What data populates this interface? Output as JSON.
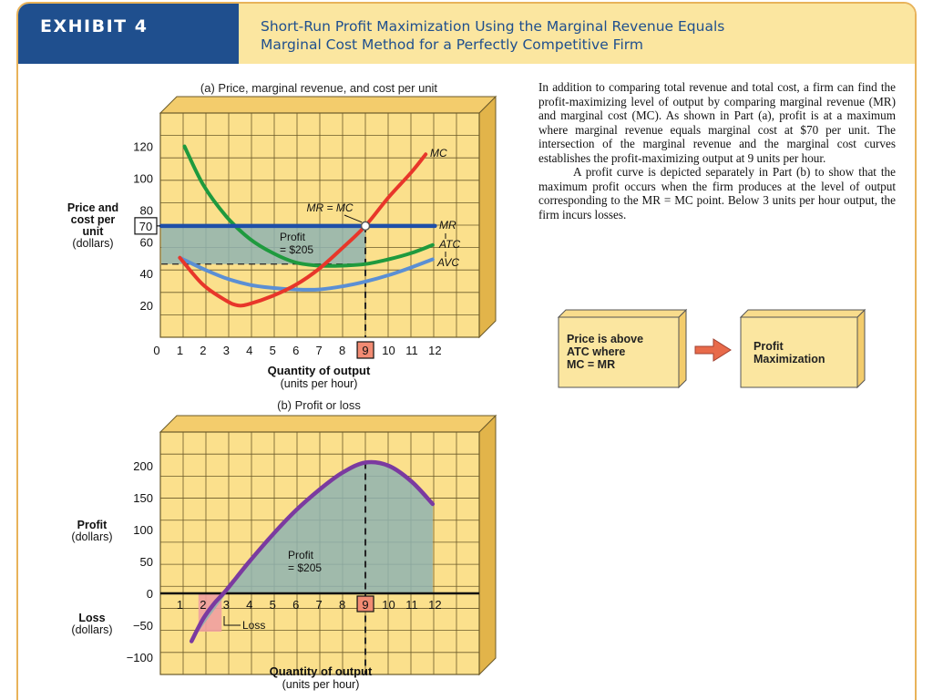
{
  "header": {
    "exhibit_label": "EXHIBIT 4",
    "title_line1": "Short-Run Profit Maximization Using the Marginal Revenue Equals",
    "title_line2": "Marginal Cost Method for a Perfectly Competitive Firm"
  },
  "description": {
    "paragraph1": "In addition to comparing total revenue and total cost, a firm can find the profit-maximizing level of output by comparing marginal revenue (MR) and marginal cost (MC). As shown in Part (a), profit is at a maximum where marginal revenue equals marginal cost at $70 per unit. The intersection of the marginal revenue and the marginal cost curves establishes the profit-maximizing output at 9 units per hour.",
    "paragraph2": "A profit curve is depicted separately in Part (b) to show that the maximum profit occurs when the firm produces at the level of output corresponding to the MR = MC point. Below 3 units per hour output, the firm incurs losses."
  },
  "flow": {
    "box1": [
      "Price is above",
      "ATC where",
      "MC = MR"
    ],
    "box2": [
      "Profit",
      "Maximization"
    ]
  },
  "colors": {
    "header_blue": "#1f4f8e",
    "header_yellow": "#fbe6a0",
    "frame": "#e8b35a",
    "grid_fill": "#fbe08c",
    "grid_line": "#6b5a2a",
    "mc": "#e8362a",
    "mr": "#1f4fa8",
    "atc": "#1f9a3e",
    "avc": "#5b8fd4",
    "profit_curve": "#7b3aa0",
    "profit_area": "#8fb3b0",
    "loss_area": "#f0a0a0",
    "arrow": "#e86a4a"
  },
  "chart_data": [
    {
      "type": "line",
      "title": "(a) Price, marginal revenue, and cost per unit",
      "ylabel": [
        "Price and",
        "cost per",
        "unit",
        "(dollars)"
      ],
      "xlabel": [
        "Quantity of output",
        "(units per hour)"
      ],
      "xlim": [
        0,
        12
      ],
      "ylim": [
        0,
        140
      ],
      "xticks": [
        "0",
        "1",
        "2",
        "3",
        "4",
        "5",
        "6",
        "7",
        "8",
        "9",
        "10",
        "11",
        "12"
      ],
      "yticks": [
        "20",
        "40",
        "60",
        "80",
        "100",
        "120"
      ],
      "highlighted_x": "9",
      "highlighted_y": "70",
      "series": [
        {
          "name": "MC",
          "x": [
            1,
            2,
            3,
            3.5,
            4,
            5,
            6,
            7,
            8,
            9,
            10,
            11,
            11.6
          ],
          "y": [
            50,
            33,
            23,
            20,
            21,
            26,
            33,
            43,
            56,
            70,
            88,
            104,
            115
          ]
        },
        {
          "name": "MR",
          "x": [
            0.2,
            12
          ],
          "y": [
            70,
            70
          ]
        },
        {
          "name": "ATC",
          "x": [
            1.2,
            2,
            3,
            4,
            5,
            6,
            7,
            8,
            9,
            10,
            11,
            11.9
          ],
          "y": [
            120,
            96,
            76,
            62,
            53,
            47,
            45,
            45,
            46,
            49,
            53,
            58
          ]
        },
        {
          "name": "AVC",
          "x": [
            1,
            2,
            3,
            4,
            5,
            6,
            7,
            8,
            9,
            10,
            11,
            11.9
          ],
          "y": [
            50,
            43,
            37,
            33,
            31,
            30,
            30,
            32,
            35,
            39,
            44,
            49
          ]
        }
      ],
      "annotations": {
        "intersection": "MR = MC",
        "profit_label": "Profit",
        "profit_value": "= $205"
      },
      "profit_region": {
        "x": [
          0.2,
          9
        ],
        "y": [
          46,
          70
        ]
      }
    },
    {
      "type": "line",
      "title": "(b) Profit or loss",
      "ylabel_top": [
        "Profit",
        "(dollars)"
      ],
      "ylabel_bottom": [
        "Loss",
        "(dollars)"
      ],
      "xlabel": [
        "Quantity of output",
        "(units per hour)"
      ],
      "xlim": [
        0,
        12
      ],
      "ylim": [
        -100,
        250
      ],
      "xticks": [
        "1",
        "2",
        "3",
        "4",
        "5",
        "6",
        "7",
        "8",
        "9",
        "10",
        "11",
        "12"
      ],
      "yticks": [
        "200",
        "150",
        "100",
        "50",
        "0",
        "−50",
        "−100"
      ],
      "highlighted_x": "9",
      "series": [
        {
          "name": "Profit",
          "x": [
            1.5,
            2,
            2.5,
            3,
            4,
            5,
            6,
            7,
            8,
            9,
            10,
            11,
            11.9
          ],
          "y": [
            -75,
            -40,
            -15,
            5,
            50,
            92,
            130,
            162,
            189,
            205,
            200,
            175,
            140
          ]
        }
      ],
      "annotations": {
        "profit_label": "Profit",
        "profit_value": "= $205",
        "loss_label": "Loss"
      },
      "loss_region": {
        "x": [
          1.8,
          2.8
        ]
      }
    }
  ]
}
